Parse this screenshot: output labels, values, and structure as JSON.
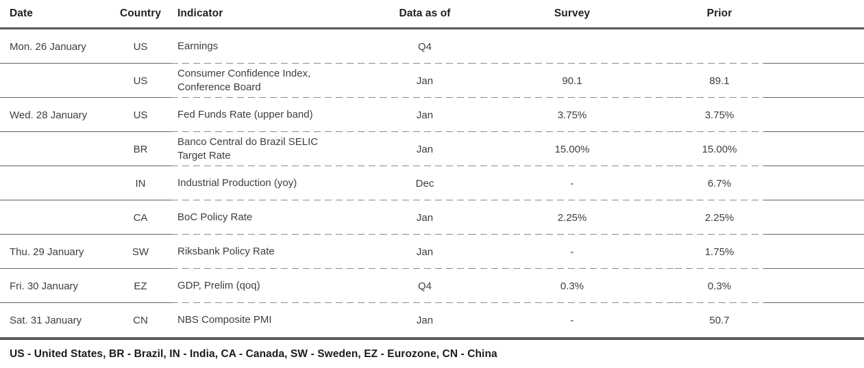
{
  "table": {
    "columns": [
      {
        "key": "date",
        "label": "Date"
      },
      {
        "key": "country",
        "label": "Country"
      },
      {
        "key": "indicator",
        "label": "Indicator"
      },
      {
        "key": "data_as_of",
        "label": "Data as of"
      },
      {
        "key": "survey",
        "label": "Survey"
      },
      {
        "key": "prior",
        "label": "Prior"
      }
    ],
    "rows": [
      {
        "date": "Mon. 26 January",
        "country": "US",
        "indicator": "Earnings",
        "data_as_of": "Q4",
        "survey": "",
        "prior": ""
      },
      {
        "date": "",
        "country": "US",
        "indicator": "Consumer Confidence Index, Conference Board",
        "data_as_of": "Jan",
        "survey": "90.1",
        "prior": "89.1"
      },
      {
        "date": "Wed. 28 January",
        "country": "US",
        "indicator": "Fed Funds Rate (upper band)",
        "data_as_of": "Jan",
        "survey": "3.75%",
        "prior": "3.75%"
      },
      {
        "date": "",
        "country": "BR",
        "indicator": "Banco Central do Brazil SELIC Target Rate",
        "data_as_of": "Jan",
        "survey": "15.00%",
        "prior": "15.00%"
      },
      {
        "date": "",
        "country": "IN",
        "indicator": "Industrial Production (yoy)",
        "data_as_of": "Dec",
        "survey": "-",
        "prior": "6.7%"
      },
      {
        "date": "",
        "country": "CA",
        "indicator": "BoC Policy Rate",
        "data_as_of": "Jan",
        "survey": "2.25%",
        "prior": "2.25%"
      },
      {
        "date": "Thu. 29 January",
        "country": "SW",
        "indicator": "Riksbank Policy Rate",
        "data_as_of": "Jan",
        "survey": "-",
        "prior": "1.75%"
      },
      {
        "date": "Fri. 30 January",
        "country": "EZ",
        "indicator": "GDP, Prelim (qoq)",
        "data_as_of": "Q4",
        "survey": "0.3%",
        "prior": "0.3%"
      },
      {
        "date": "Sat. 31 January",
        "country": "CN",
        "indicator": "NBS Composite PMI",
        "data_as_of": "Jan",
        "survey": "-",
        "prior": "50.7"
      }
    ]
  },
  "footer": {
    "legend": "US - United States, BR - Brazil, IN - India, CA - Canada, SW - Sweden, EZ - Eurozone, CN - China"
  },
  "colors": {
    "heavy_rule": "#595959",
    "solid_separator": "#5f5f5f",
    "dashed_separator": "#8a8a8a",
    "body_text": "#3d3d3d",
    "header_text": "#1e1e1e"
  }
}
